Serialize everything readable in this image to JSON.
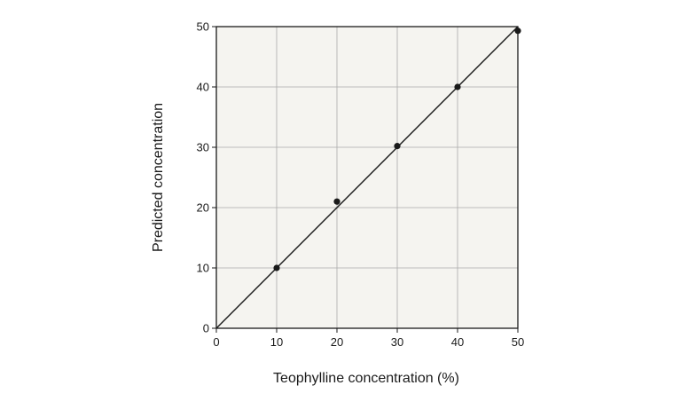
{
  "chart_data": {
    "type": "scatter",
    "xlabel": "Teophylline concentration (%)",
    "ylabel": "Predicted concentration",
    "xlim": [
      0,
      50
    ],
    "ylim": [
      0,
      50
    ],
    "x_ticks": [
      0,
      10,
      20,
      30,
      40,
      50
    ],
    "y_ticks": [
      0,
      10,
      20,
      30,
      40,
      50
    ],
    "x_tick_labels": [
      "0",
      "10",
      "20",
      "30",
      "40",
      "50"
    ],
    "y_tick_labels": [
      "0",
      "10",
      "20",
      "30",
      "40",
      "50"
    ],
    "grid": true,
    "series": [
      {
        "points": [
          {
            "x": 10,
            "y": 10
          },
          {
            "x": 20,
            "y": 21
          },
          {
            "x": 30,
            "y": 30.2
          },
          {
            "x": 40,
            "y": 40
          },
          {
            "x": 50,
            "y": 49.3
          }
        ]
      }
    ],
    "reference_line": {
      "x": [
        0,
        50
      ],
      "y": [
        0,
        50
      ]
    },
    "colors": {
      "plot_background": "#f5f4f0",
      "grid": "#aaaaaa",
      "frame": "#1a1a1a",
      "marker": "#1a1a1a",
      "line": "#1a1a1a"
    }
  }
}
